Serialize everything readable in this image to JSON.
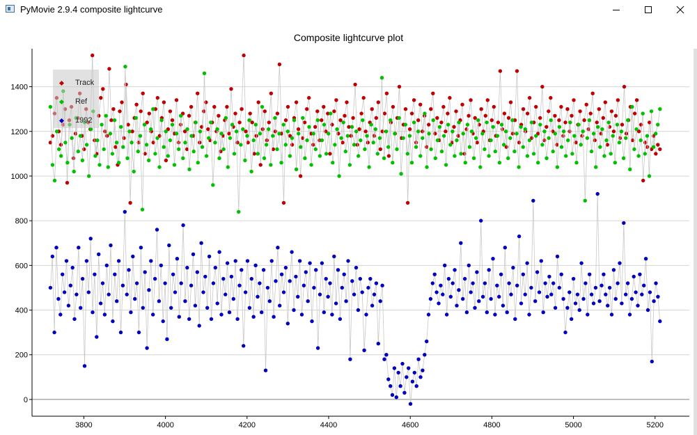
{
  "window": {
    "title": "PyMovie 2.9.4 composite lightcurve",
    "minimize_icon": "minimize-icon",
    "maximize_icon": "maximize-icon",
    "close_icon": "close-icon"
  },
  "chart_data": {
    "type": "scatter",
    "title": "Composite lightcurve plot",
    "xlabel": "",
    "ylabel": "",
    "xlim": [
      3673,
      5284
    ],
    "ylim": [
      -75,
      1570
    ],
    "x_ticks": [
      3800,
      4000,
      4200,
      4400,
      4600,
      4800,
      5000,
      5200
    ],
    "y_ticks": [
      0,
      200,
      400,
      600,
      800,
      1000,
      1200,
      1400
    ],
    "grid": true,
    "connecting_lines": true,
    "legend_position": "top-left",
    "x_range": [
      3718,
      5212
    ],
    "series": [
      {
        "name": "Track",
        "color": "#c00000",
        "marker": "circle",
        "values": [
          1150,
          1180,
          1280,
          1350,
          1200,
          1140,
          1230,
          1300,
          970,
          1250,
          1310,
          1080,
          1190,
          1260,
          1370,
          1180,
          1120,
          1300,
          1240,
          1210,
          1540,
          1160,
          1100,
          1270,
          1350,
          1390,
          1200,
          1180,
          1480,
          1250,
          1300,
          1130,
          1050,
          1290,
          1330,
          1170,
          1410,
          1230,
          880,
          1200,
          1260,
          1320,
          1150,
          1290,
          1370,
          1100,
          1240,
          1280,
          1200,
          1150,
          1300,
          1350,
          1180,
          1260,
          1330,
          1070,
          1210,
          1290,
          1250,
          1190,
          1340,
          1150,
          1230,
          1280,
          1200,
          1120,
          1270,
          1310,
          1180,
          1240,
          1370,
          1150,
          1220,
          1290,
          1330,
          1210,
          1160,
          1240,
          1310,
          1200,
          1270,
          1110,
          1180,
          1250,
          1310,
          1190,
          1390,
          1220,
          1280,
          1150,
          1240,
          1300,
          1540,
          1200,
          1150,
          1280,
          1240,
          1100,
          1180,
          1330,
          1050,
          1210,
          1290,
          1160,
          1240,
          1370,
          1120,
          1200,
          1280,
          1500,
          1190,
          880,
          1250,
          1310,
          1180,
          1140,
          1260,
          1330,
          1210,
          1000,
          1170,
          1240,
          1300,
          1350,
          1190,
          1140,
          1220,
          1290,
          1160,
          1250,
          1310,
          1200,
          1280,
          1100,
          1230,
          1290,
          1340,
          1190,
          1250,
          1150,
          1270,
          1330,
          1220,
          1180,
          1260,
          1410,
          1140,
          1210,
          1280,
          1350,
          1200,
          1150,
          1240,
          1300,
          1180,
          1260,
          1330,
          1120,
          1200,
          1280,
          1370,
          1090,
          1240,
          1310,
          1190,
          1260,
          1400,
          1170,
          1230,
          1300,
          880,
          1210,
          1280,
          1340,
          1150,
          1250,
          1320,
          1200,
          1270,
          1130,
          1230,
          1300,
          1370,
          1190,
          1260,
          1160,
          1240,
          1310,
          1200,
          1280,
          1350,
          1150,
          1220,
          1290,
          1180,
          1250,
          1320,
          1100,
          1210,
          1270,
          1340,
          1190,
          1260,
          1150,
          1230,
          1300,
          1200,
          1270,
          1340,
          1160,
          1250,
          1310,
          1180,
          1240,
          1470,
          1210,
          1280,
          1130,
          1260,
          1330,
          1190,
          1250,
          1470,
          1150,
          1230,
          1300,
          1200,
          1280,
          1350,
          1170,
          1240,
          1310,
          1190,
          1260,
          1400,
          1160,
          1220,
          1290,
          1350,
          1200,
          1270,
          1140,
          1250,
          1310,
          1180,
          1240,
          1300,
          1200,
          1270,
          1340,
          1150,
          1230,
          1290,
          1180,
          1250,
          1320,
          1210,
          1280,
          1370,
          1160,
          1240,
          1300,
          1190,
          1260,
          1330,
          1140,
          1220,
          1290,
          1200,
          1270,
          1340,
          1170,
          1230,
          1400,
          1190,
          1250,
          1310,
          1160,
          1280,
          1340,
          1200,
          1230,
          980,
          1150,
          1130,
          1240,
          1120,
          1180,
          1100,
          1140,
          1120
        ]
      },
      {
        "name": "Ref",
        "color": "#00c000",
        "marker": "circle",
        "values": [
          1310,
          1050,
          980,
          1200,
          1120,
          1090,
          1380,
          1150,
          1060,
          1230,
          1170,
          1020,
          1260,
          1110,
          1180,
          1070,
          1240,
          1140,
          1000,
          1210,
          1290,
          1090,
          1160,
          1050,
          1230,
          1120,
          1270,
          1040,
          1190,
          1100,
          1250,
          1150,
          1060,
          1220,
          1130,
          1490,
          1080,
          1200,
          1150,
          1020,
          1260,
          1110,
          1180,
          850,
          1230,
          1140,
          1070,
          1210,
          1300,
          1100,
          1170,
          1040,
          1250,
          1130,
          1200,
          1090,
          1160,
          1230,
          1050,
          1190,
          1120,
          1270,
          1080,
          1150,
          1210,
          1030,
          1180,
          1110,
          1240,
          1060,
          1200,
          1130,
          1460,
          1090,
          1170,
          1240,
          960,
          1150,
          1210,
          1080,
          1190,
          1120,
          1260,
          1040,
          1170,
          1230,
          1100,
          1200,
          840,
          1140,
          1210,
          1070,
          1180,
          1250,
          1020,
          1160,
          1230,
          1100,
          1190,
          1310,
          1080,
          1140,
          1210,
          1050,
          1180,
          1260,
          1120,
          1190,
          1060,
          1230,
          1140,
          1200,
          1090,
          1170,
          1250,
          1030,
          1190,
          1130,
          1260,
          1080,
          1160,
          1220,
          1050,
          1190,
          1120,
          1250,
          1090,
          1160,
          1230,
          1100,
          1190,
          1280,
          1060,
          1140,
          1210,
          1000,
          1170,
          1240,
          1110,
          1180,
          1050,
          1220,
          1140,
          1200,
          1090,
          1160,
          1250,
          1120,
          1180,
          1040,
          1230,
          1150,
          1210,
          1100,
          1170,
          1440,
          1080,
          1200,
          1130,
          1250,
          1060,
          1190,
          1120,
          1260,
          1010,
          1170,
          1230,
          1100,
          1180,
          1060,
          1240,
          1130,
          1200,
          1090,
          1170,
          1280,
          1040,
          1190,
          1120,
          1250,
          1080,
          1160,
          1220,
          1110,
          1180,
          1050,
          1230,
          1140,
          1200,
          1090,
          1160,
          1240,
          1100,
          1190,
          1060,
          1230,
          1130,
          1200,
          1080,
          1170,
          1250,
          1040,
          1190,
          1120,
          1240,
          1090,
          1160,
          1220,
          1110,
          1180,
          1060,
          1230,
          1140,
          1200,
          1080,
          1170,
          1250,
          1110,
          1190,
          1040,
          1220,
          1130,
          1210,
          1090,
          1160,
          1240,
          1100,
          1180,
          1060,
          1230,
          1140,
          1200,
          1080,
          1170,
          1250,
          1110,
          1190,
          1040,
          1220,
          1130,
          1200,
          1090,
          1160,
          1240,
          1100,
          1180,
          1060,
          1230,
          1140,
          1200,
          890,
          1170,
          1250,
          1110,
          1190,
          1040,
          1220,
          1130,
          1210,
          1090,
          1160,
          1240,
          1100,
          1180,
          1060,
          1230,
          1150,
          1200,
          1080,
          1170,
          1250,
          1030,
          1310,
          1120,
          1210,
          1090,
          1160,
          1280,
          1100,
          1180,
          1000,
          1290,
          1130,
          1190,
          1230,
          1300
        ]
      },
      {
        "name": "1992",
        "color": "#0000c0",
        "marker": "circle",
        "values": [
          500,
          640,
          300,
          680,
          450,
          380,
          560,
          480,
          620,
          420,
          510,
          590,
          360,
          470,
          680,
          410,
          540,
          150,
          620,
          480,
          720,
          390,
          560,
          280,
          650,
          430,
          520,
          380,
          600,
          470,
          690,
          350,
          560,
          440,
          620,
          300,
          510,
          840,
          470,
          580,
          390,
          640,
          450,
          520,
          300,
          680,
          410,
          570,
          230,
          490,
          620,
          380,
          540,
          760,
          440,
          600,
          350,
          520,
          270,
          690,
          410,
          560,
          480,
          630,
          370,
          520,
          780,
          440,
          590,
          360,
          510,
          650,
          420,
          570,
          330,
          700,
          480,
          550,
          410,
          640,
          360,
          520,
          590,
          430,
          660,
          380,
          540,
          470,
          610,
          390,
          550,
          450,
          620,
          360,
          510,
          580,
          240,
          480,
          620,
          410,
          540,
          370,
          600,
          460,
          520,
          390,
          580,
          130,
          500,
          440,
          620,
          370,
          530,
          680,
          420,
          560,
          480,
          590,
          340,
          530,
          660,
          400,
          550,
          460,
          620,
          380,
          510,
          570,
          440,
          610,
          350,
          500,
          580,
          230,
          470,
          610,
          390,
          540,
          460,
          520,
          380,
          640,
          430,
          580,
          360,
          500,
          560,
          440,
          620,
          180,
          530,
          470,
          590,
          400,
          540,
          480,
          220,
          380,
          500,
          540,
          420,
          470,
          520,
          250,
          440,
          510,
          180,
          200,
          90,
          60,
          20,
          140,
          10,
          120,
          60,
          160,
          30,
          100,
          140,
          -20,
          80,
          120,
          60,
          180,
          100,
          130,
          200,
          260,
          380,
          450,
          520,
          560,
          480,
          430,
          510,
          470,
          600,
          380,
          540,
          460,
          520,
          580,
          420,
          490,
          700,
          450,
          540,
          390,
          600,
          480,
          520,
          410,
          570,
          440,
          800,
          460,
          520,
          390,
          580,
          450,
          630,
          380,
          510,
          460,
          560,
          420,
          680,
          390,
          520,
          470,
          590,
          360,
          510,
          730,
          430,
          560,
          470,
          610,
          380,
          500,
          890,
          440,
          570,
          480,
          620,
          390,
          520,
          460,
          550,
          470,
          520,
          410,
          640,
          500,
          560,
          450,
          300,
          410,
          480,
          360,
          540,
          430,
          470,
          400,
          610,
          450,
          520,
          380,
          560,
          470,
          430,
          500,
          920,
          440,
          510,
          560,
          470,
          420,
          500,
          380,
          580,
          450,
          520,
          610,
          430,
          790,
          470,
          520,
          380,
          450,
          550,
          480,
          420,
          560,
          470,
          510,
          630,
          400,
          480,
          170,
          440,
          520,
          460,
          350
        ]
      }
    ]
  }
}
